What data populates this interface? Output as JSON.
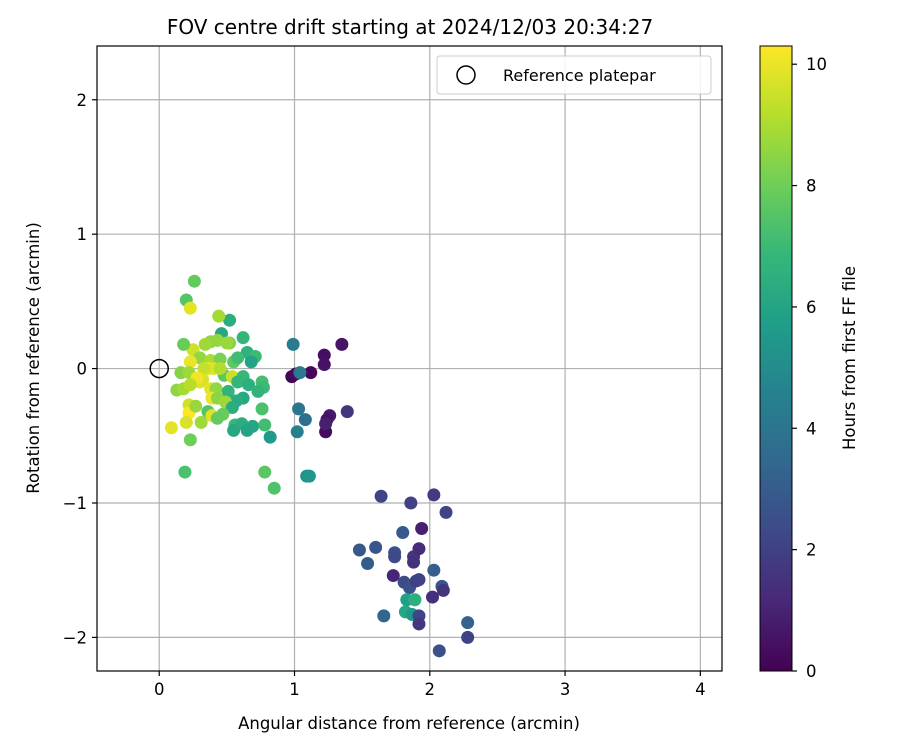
{
  "chart_data": {
    "type": "scatter",
    "title": "FOV centre drift starting at 2024/12/03 20:34:27",
    "xlabel": "Angular distance from reference (arcmin)",
    "ylabel": "Rotation from reference (arcmin)",
    "xlim": [
      -0.46,
      4.16
    ],
    "ylim": [
      -2.25,
      2.4
    ],
    "xticks": [
      0,
      1,
      2,
      3,
      4
    ],
    "yticks": [
      -2,
      -1,
      0,
      1,
      2
    ],
    "grid": true,
    "legend": {
      "placement": "top-right",
      "entries": [
        "Reference platepar"
      ]
    },
    "reference_point": {
      "x": 0,
      "y": 0,
      "label": "Reference platepar"
    },
    "colorbar": {
      "label": "Hours from first FF file",
      "min": 0,
      "max": 10.3,
      "ticks": [
        0,
        2,
        4,
        6,
        8,
        10
      ],
      "colormap": "viridis"
    },
    "colormap_stops": [
      "#440154",
      "#482878",
      "#3e4989",
      "#31688e",
      "#26828e",
      "#1f9e89",
      "#35b779",
      "#6ece58",
      "#b5de2b",
      "#fde725"
    ],
    "points": [
      {
        "x": 0.98,
        "y": -0.06,
        "h": 0.1
      },
      {
        "x": 1.12,
        "y": -0.03,
        "h": 0.2
      },
      {
        "x": 1.01,
        "y": -0.04,
        "h": 0.3
      },
      {
        "x": 1.22,
        "y": 0.1,
        "h": 0.4
      },
      {
        "x": 1.22,
        "y": 0.03,
        "h": 0.5
      },
      {
        "x": 1.35,
        "y": 0.18,
        "h": 0.6
      },
      {
        "x": 1.23,
        "y": -0.47,
        "h": 0.3
      },
      {
        "x": 1.26,
        "y": -0.35,
        "h": 0.7
      },
      {
        "x": 1.24,
        "y": -0.38,
        "h": 0.5
      },
      {
        "x": 1.39,
        "y": -0.32,
        "h": 1.6
      },
      {
        "x": 1.23,
        "y": -0.41,
        "h": 0.9
      },
      {
        "x": 1.64,
        "y": -0.95,
        "h": 2.2
      },
      {
        "x": 1.86,
        "y": -1.0,
        "h": 2.0
      },
      {
        "x": 2.03,
        "y": -0.94,
        "h": 1.8
      },
      {
        "x": 2.12,
        "y": -1.07,
        "h": 2.1
      },
      {
        "x": 1.94,
        "y": -1.19,
        "h": 0.9
      },
      {
        "x": 1.48,
        "y": -1.35,
        "h": 2.8
      },
      {
        "x": 1.6,
        "y": -1.33,
        "h": 2.7
      },
      {
        "x": 1.54,
        "y": -1.45,
        "h": 3.0
      },
      {
        "x": 1.74,
        "y": -1.37,
        "h": 2.5
      },
      {
        "x": 1.74,
        "y": -1.4,
        "h": 2.3
      },
      {
        "x": 1.8,
        "y": -1.22,
        "h": 2.9
      },
      {
        "x": 1.88,
        "y": -1.4,
        "h": 1.7
      },
      {
        "x": 1.88,
        "y": -1.44,
        "h": 1.5
      },
      {
        "x": 1.92,
        "y": -1.34,
        "h": 1.3
      },
      {
        "x": 1.73,
        "y": -1.54,
        "h": 1.1
      },
      {
        "x": 1.81,
        "y": -1.59,
        "h": 2.4
      },
      {
        "x": 1.85,
        "y": -1.63,
        "h": 2.6
      },
      {
        "x": 1.9,
        "y": -1.58,
        "h": 1.9
      },
      {
        "x": 1.92,
        "y": -1.57,
        "h": 2.0
      },
      {
        "x": 2.03,
        "y": -1.5,
        "h": 3.1
      },
      {
        "x": 2.09,
        "y": -1.62,
        "h": 2.8
      },
      {
        "x": 2.1,
        "y": -1.65,
        "h": 1.6
      },
      {
        "x": 2.02,
        "y": -1.7,
        "h": 1.4
      },
      {
        "x": 1.83,
        "y": -1.72,
        "h": 5.8
      },
      {
        "x": 1.89,
        "y": -1.72,
        "h": 6.5
      },
      {
        "x": 1.82,
        "y": -1.81,
        "h": 6.1
      },
      {
        "x": 1.87,
        "y": -1.83,
        "h": 5.5
      },
      {
        "x": 1.92,
        "y": -1.84,
        "h": 2.2
      },
      {
        "x": 1.92,
        "y": -1.9,
        "h": 1.7
      },
      {
        "x": 1.66,
        "y": -1.84,
        "h": 3.4
      },
      {
        "x": 2.28,
        "y": -1.89,
        "h": 3.2
      },
      {
        "x": 2.28,
        "y": -2.0,
        "h": 2.0
      },
      {
        "x": 2.07,
        "y": -2.1,
        "h": 2.6
      },
      {
        "x": 0.99,
        "y": 0.18,
        "h": 4.3
      },
      {
        "x": 1.03,
        "y": -0.3,
        "h": 4.0
      },
      {
        "x": 1.08,
        "y": -0.38,
        "h": 3.8
      },
      {
        "x": 1.02,
        "y": -0.47,
        "h": 4.5
      },
      {
        "x": 1.04,
        "y": -0.03,
        "h": 4.2
      },
      {
        "x": 1.09,
        "y": -0.8,
        "h": 5.2
      },
      {
        "x": 1.11,
        "y": -0.8,
        "h": 5.4
      },
      {
        "x": 0.85,
        "y": -0.89,
        "h": 7.4
      },
      {
        "x": 0.78,
        "y": -0.77,
        "h": 7.6
      },
      {
        "x": 0.19,
        "y": -0.77,
        "h": 7.3
      },
      {
        "x": 0.23,
        "y": -0.53,
        "h": 8.0
      },
      {
        "x": 0.26,
        "y": 0.65,
        "h": 7.8
      },
      {
        "x": 0.2,
        "y": 0.51,
        "h": 7.5
      },
      {
        "x": 0.23,
        "y": 0.45,
        "h": 9.9
      },
      {
        "x": 0.52,
        "y": 0.36,
        "h": 6.4
      },
      {
        "x": 0.44,
        "y": 0.39,
        "h": 8.9
      },
      {
        "x": 0.62,
        "y": 0.23,
        "h": 6.8
      },
      {
        "x": 0.46,
        "y": 0.26,
        "h": 6.2
      },
      {
        "x": 0.65,
        "y": 0.12,
        "h": 6.6
      },
      {
        "x": 0.71,
        "y": 0.09,
        "h": 7.0
      },
      {
        "x": 0.68,
        "y": 0.05,
        "h": 6.0
      },
      {
        "x": 0.55,
        "y": 0.05,
        "h": 7.7
      },
      {
        "x": 0.52,
        "y": 0.19,
        "h": 8.3
      },
      {
        "x": 0.38,
        "y": 0.2,
        "h": 8.5
      },
      {
        "x": 0.34,
        "y": 0.18,
        "h": 8.8
      },
      {
        "x": 0.43,
        "y": 0.21,
        "h": 8.6
      },
      {
        "x": 0.5,
        "y": 0.19,
        "h": 8.7
      },
      {
        "x": 0.25,
        "y": 0.14,
        "h": 9.6
      },
      {
        "x": 0.18,
        "y": 0.18,
        "h": 7.9
      },
      {
        "x": 0.3,
        "y": 0.08,
        "h": 8.6
      },
      {
        "x": 0.23,
        "y": 0.05,
        "h": 10.0
      },
      {
        "x": 0.38,
        "y": 0.06,
        "h": 9.0
      },
      {
        "x": 0.45,
        "y": 0.07,
        "h": 8.2
      },
      {
        "x": 0.58,
        "y": 0.08,
        "h": 7.1
      },
      {
        "x": 0.36,
        "y": 0.0,
        "h": 10.2
      },
      {
        "x": 0.4,
        "y": 0.0,
        "h": 9.8
      },
      {
        "x": 0.33,
        "y": 0.0,
        "h": 9.4
      },
      {
        "x": 0.16,
        "y": -0.03,
        "h": 8.4
      },
      {
        "x": 0.22,
        "y": -0.03,
        "h": 8.8
      },
      {
        "x": 0.48,
        "y": -0.05,
        "h": 7.6
      },
      {
        "x": 0.54,
        "y": -0.06,
        "h": 9.5
      },
      {
        "x": 0.62,
        "y": -0.06,
        "h": 6.9
      },
      {
        "x": 0.58,
        "y": -0.1,
        "h": 6.8
      },
      {
        "x": 0.66,
        "y": -0.12,
        "h": 6.5
      },
      {
        "x": 0.76,
        "y": -0.1,
        "h": 7.2
      },
      {
        "x": 0.77,
        "y": -0.14,
        "h": 7.0
      },
      {
        "x": 0.73,
        "y": -0.17,
        "h": 6.7
      },
      {
        "x": 0.3,
        "y": -0.1,
        "h": 9.9
      },
      {
        "x": 0.32,
        "y": -0.08,
        "h": 9.7
      },
      {
        "x": 0.28,
        "y": -0.07,
        "h": 10.1
      },
      {
        "x": 0.13,
        "y": -0.16,
        "h": 8.5
      },
      {
        "x": 0.18,
        "y": -0.15,
        "h": 8.9
      },
      {
        "x": 0.23,
        "y": -0.12,
        "h": 9.2
      },
      {
        "x": 0.38,
        "y": -0.15,
        "h": 9.9
      },
      {
        "x": 0.42,
        "y": -0.15,
        "h": 8.6
      },
      {
        "x": 0.51,
        "y": -0.17,
        "h": 6.7
      },
      {
        "x": 0.62,
        "y": -0.22,
        "h": 6.2
      },
      {
        "x": 0.57,
        "y": -0.24,
        "h": 6.3
      },
      {
        "x": 0.39,
        "y": -0.22,
        "h": 10.0
      },
      {
        "x": 0.43,
        "y": -0.22,
        "h": 8.5
      },
      {
        "x": 0.49,
        "y": -0.25,
        "h": 8.8
      },
      {
        "x": 0.54,
        "y": -0.29,
        "h": 6.4
      },
      {
        "x": 0.36,
        "y": -0.32,
        "h": 7.5
      },
      {
        "x": 0.47,
        "y": -0.34,
        "h": 7.9
      },
      {
        "x": 0.39,
        "y": -0.35,
        "h": 9.8
      },
      {
        "x": 0.43,
        "y": -0.37,
        "h": 7.8
      },
      {
        "x": 0.22,
        "y": -0.27,
        "h": 9.6
      },
      {
        "x": 0.22,
        "y": -0.33,
        "h": 10.3
      },
      {
        "x": 0.31,
        "y": -0.4,
        "h": 8.8
      },
      {
        "x": 0.2,
        "y": -0.4,
        "h": 9.7
      },
      {
        "x": 0.09,
        "y": -0.44,
        "h": 9.9
      },
      {
        "x": 0.56,
        "y": -0.42,
        "h": 6.9
      },
      {
        "x": 0.61,
        "y": -0.41,
        "h": 6.4
      },
      {
        "x": 0.69,
        "y": -0.43,
        "h": 6.1
      },
      {
        "x": 0.78,
        "y": -0.42,
        "h": 7.1
      },
      {
        "x": 0.55,
        "y": -0.46,
        "h": 6.2
      },
      {
        "x": 0.65,
        "y": -0.46,
        "h": 6.0
      },
      {
        "x": 0.82,
        "y": -0.51,
        "h": 5.6
      },
      {
        "x": 0.27,
        "y": -0.28,
        "h": 8.7
      },
      {
        "x": 0.76,
        "y": -0.3,
        "h": 7.3
      },
      {
        "x": 0.45,
        "y": 0.0,
        "h": 9.1
      }
    ]
  }
}
